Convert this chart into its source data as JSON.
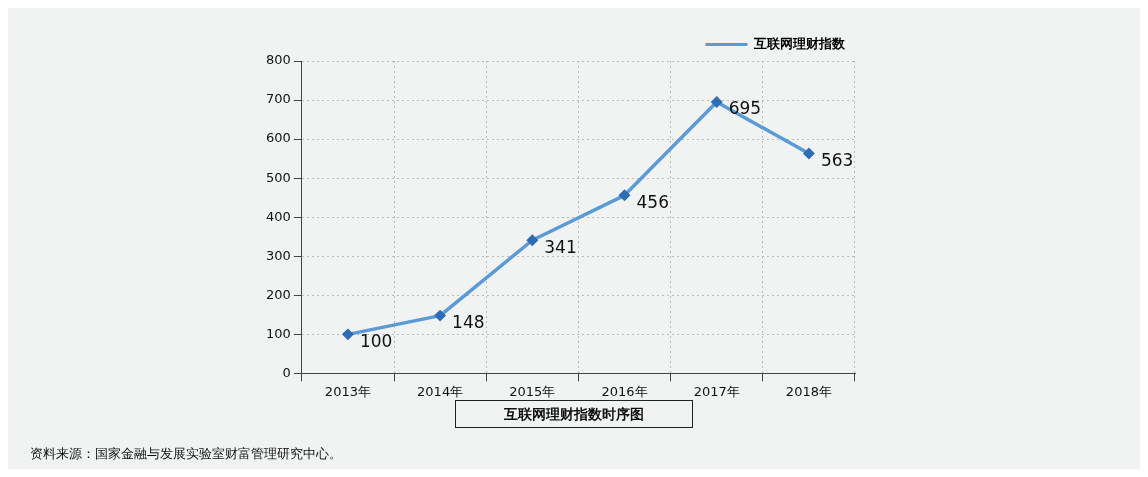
{
  "chart_data": {
    "type": "line",
    "title": "互联网理财指数时序图",
    "categories": [
      "2013年",
      "2014年",
      "2015年",
      "2016年",
      "2017年",
      "2018年"
    ],
    "series": [
      {
        "name": "互联网理财指数",
        "color": "#5b9bd5",
        "values": [
          100,
          148,
          341,
          456,
          695,
          563
        ]
      }
    ],
    "ylim": [
      0,
      800
    ],
    "yticks": [
      0,
      100,
      200,
      300,
      400,
      500,
      600,
      700,
      800
    ],
    "grid": true,
    "legend": "top right",
    "marker": "diamond",
    "line_style": "solid",
    "data_labels": true,
    "annotations": [
      "资料来源：国家金融与发展实验室财富管理研究中心。"
    ]
  }
}
